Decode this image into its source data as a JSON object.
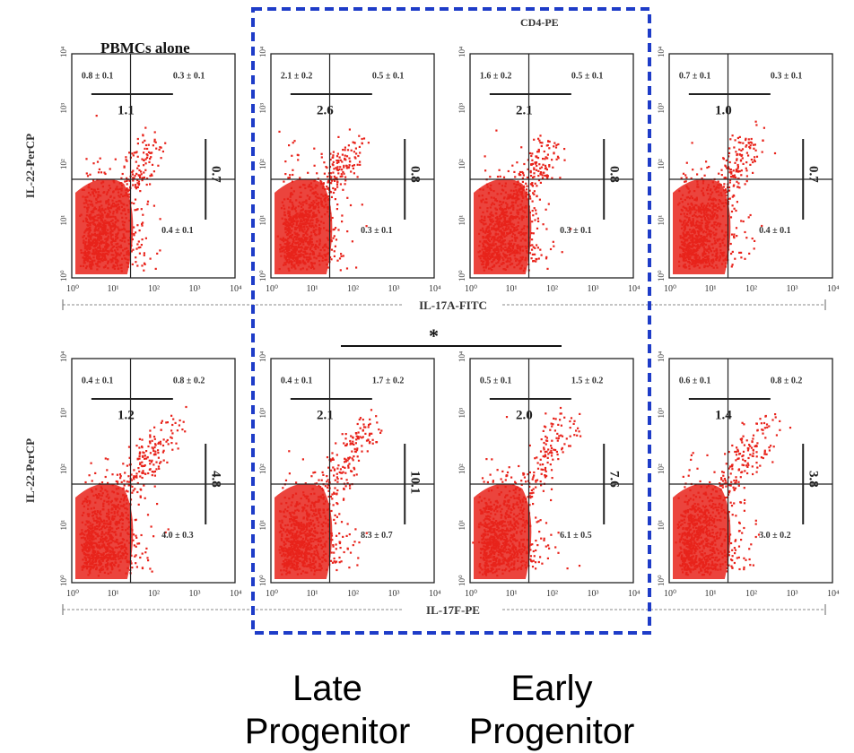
{
  "header_top": "CD4-PE",
  "panel_title": "PBMCs alone",
  "significance": "*",
  "bottom_labels": [
    {
      "line1": "Late",
      "line2": "Progenitor"
    },
    {
      "line1": "Early",
      "line2": "Progenitor"
    }
  ],
  "colors": {
    "dots": "#e8231b",
    "box": "#1e3cc8",
    "axis": "#222222"
  },
  "chart_data": {
    "type": "scatter",
    "note": "Flow cytometry quadrant plots; dots are density, values below are printed quadrant statistics",
    "x_ticks": [
      "10⁰",
      "10¹",
      "10²",
      "10³",
      "10⁴"
    ],
    "y_ticks": [
      "10⁰",
      "10¹",
      "10²",
      "10³",
      "10⁴"
    ],
    "scale": "log",
    "rows": [
      {
        "ylabel": "IL-22-PerCP",
        "xlabel": "IL-17A-FITC",
        "panels": [
          {
            "ul": "0.8 ± 0.1",
            "ur": "0.3 ± 0.1",
            "lr": "0.4 ± 0.1",
            "ratio_h": "1.1",
            "ratio_v": "0.7"
          },
          {
            "ul": "2.1 ± 0.2",
            "ur": "0.5 ± 0.1",
            "lr": "0.3 ± 0.1",
            "ratio_h": "2.6",
            "ratio_v": "0.8"
          },
          {
            "ul": "1.6 ± 0.2",
            "ur": "0.5 ± 0.1",
            "lr": "0.3 ± 0.1",
            "ratio_h": "2.1",
            "ratio_v": "0.8"
          },
          {
            "ul": "0.7 ± 0.1",
            "ur": "0.3 ± 0.1",
            "lr": "0.4 ± 0.1",
            "ratio_h": "1.0",
            "ratio_v": "0.7"
          }
        ]
      },
      {
        "ylabel": "IL-22-PerCP",
        "xlabel": "IL-17F-PE",
        "panels": [
          {
            "ul": "0.4 ± 0.1",
            "ur": "0.8 ± 0.2",
            "lr": "4.0 ± 0.3",
            "ratio_h": "1.2",
            "ratio_v": "4.8"
          },
          {
            "ul": "0.4 ± 0.1",
            "ur": "1.7 ± 0.2",
            "lr": "8.3 ± 0.7",
            "ratio_h": "2.1",
            "ratio_v": "10.1"
          },
          {
            "ul": "0.5 ± 0.1",
            "ur": "1.5 ± 0.2",
            "lr": "6.1 ± 0.5",
            "ratio_h": "2.0",
            "ratio_v": "7.6"
          },
          {
            "ul": "0.6 ± 0.1",
            "ur": "0.8 ± 0.2",
            "lr": "3.0 ± 0.2",
            "ratio_h": "1.4",
            "ratio_v": "3.8"
          }
        ]
      }
    ]
  }
}
